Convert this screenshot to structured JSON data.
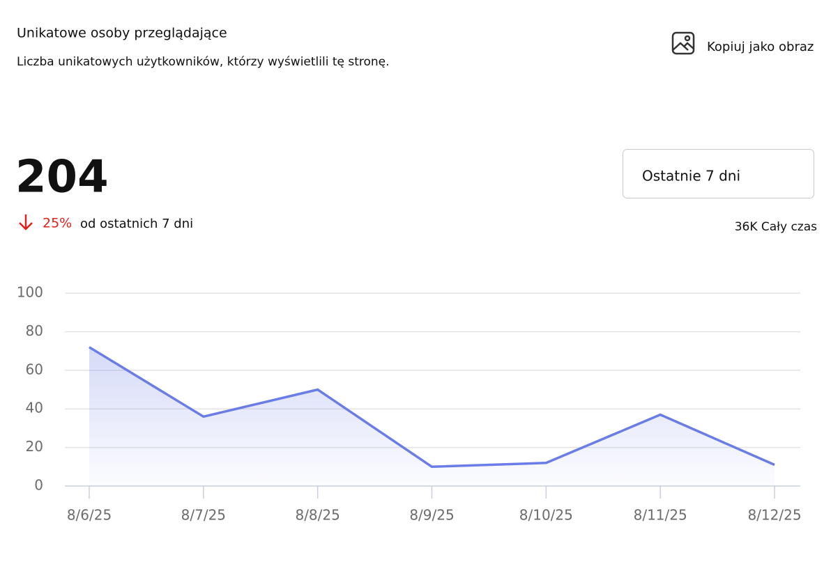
{
  "header": {
    "title": "Unikatowe osoby przeglądające",
    "subtitle": "Liczba unikatowych użytkowników, którzy wyświetlili tę stronę.",
    "copy_button": "Kopiuj jako obraz"
  },
  "summary": {
    "total": "204",
    "change": "25%",
    "change_text": "od ostatnich 7 dni",
    "range_select": "Ostatnie 7 dni",
    "all_time": "36K Cały czas"
  },
  "chart_data": {
    "type": "line",
    "categories": [
      "8/6/25",
      "8/7/25",
      "8/8/25",
      "8/9/25",
      "8/10/25",
      "8/11/25",
      "8/12/25"
    ],
    "values": [
      72,
      36,
      50,
      10,
      12,
      37,
      11
    ],
    "color": "#6a7de6",
    "area": true,
    "ylim": [
      0,
      100
    ],
    "yticks": [
      0,
      20,
      40,
      60,
      80,
      100
    ],
    "grid": true
  }
}
